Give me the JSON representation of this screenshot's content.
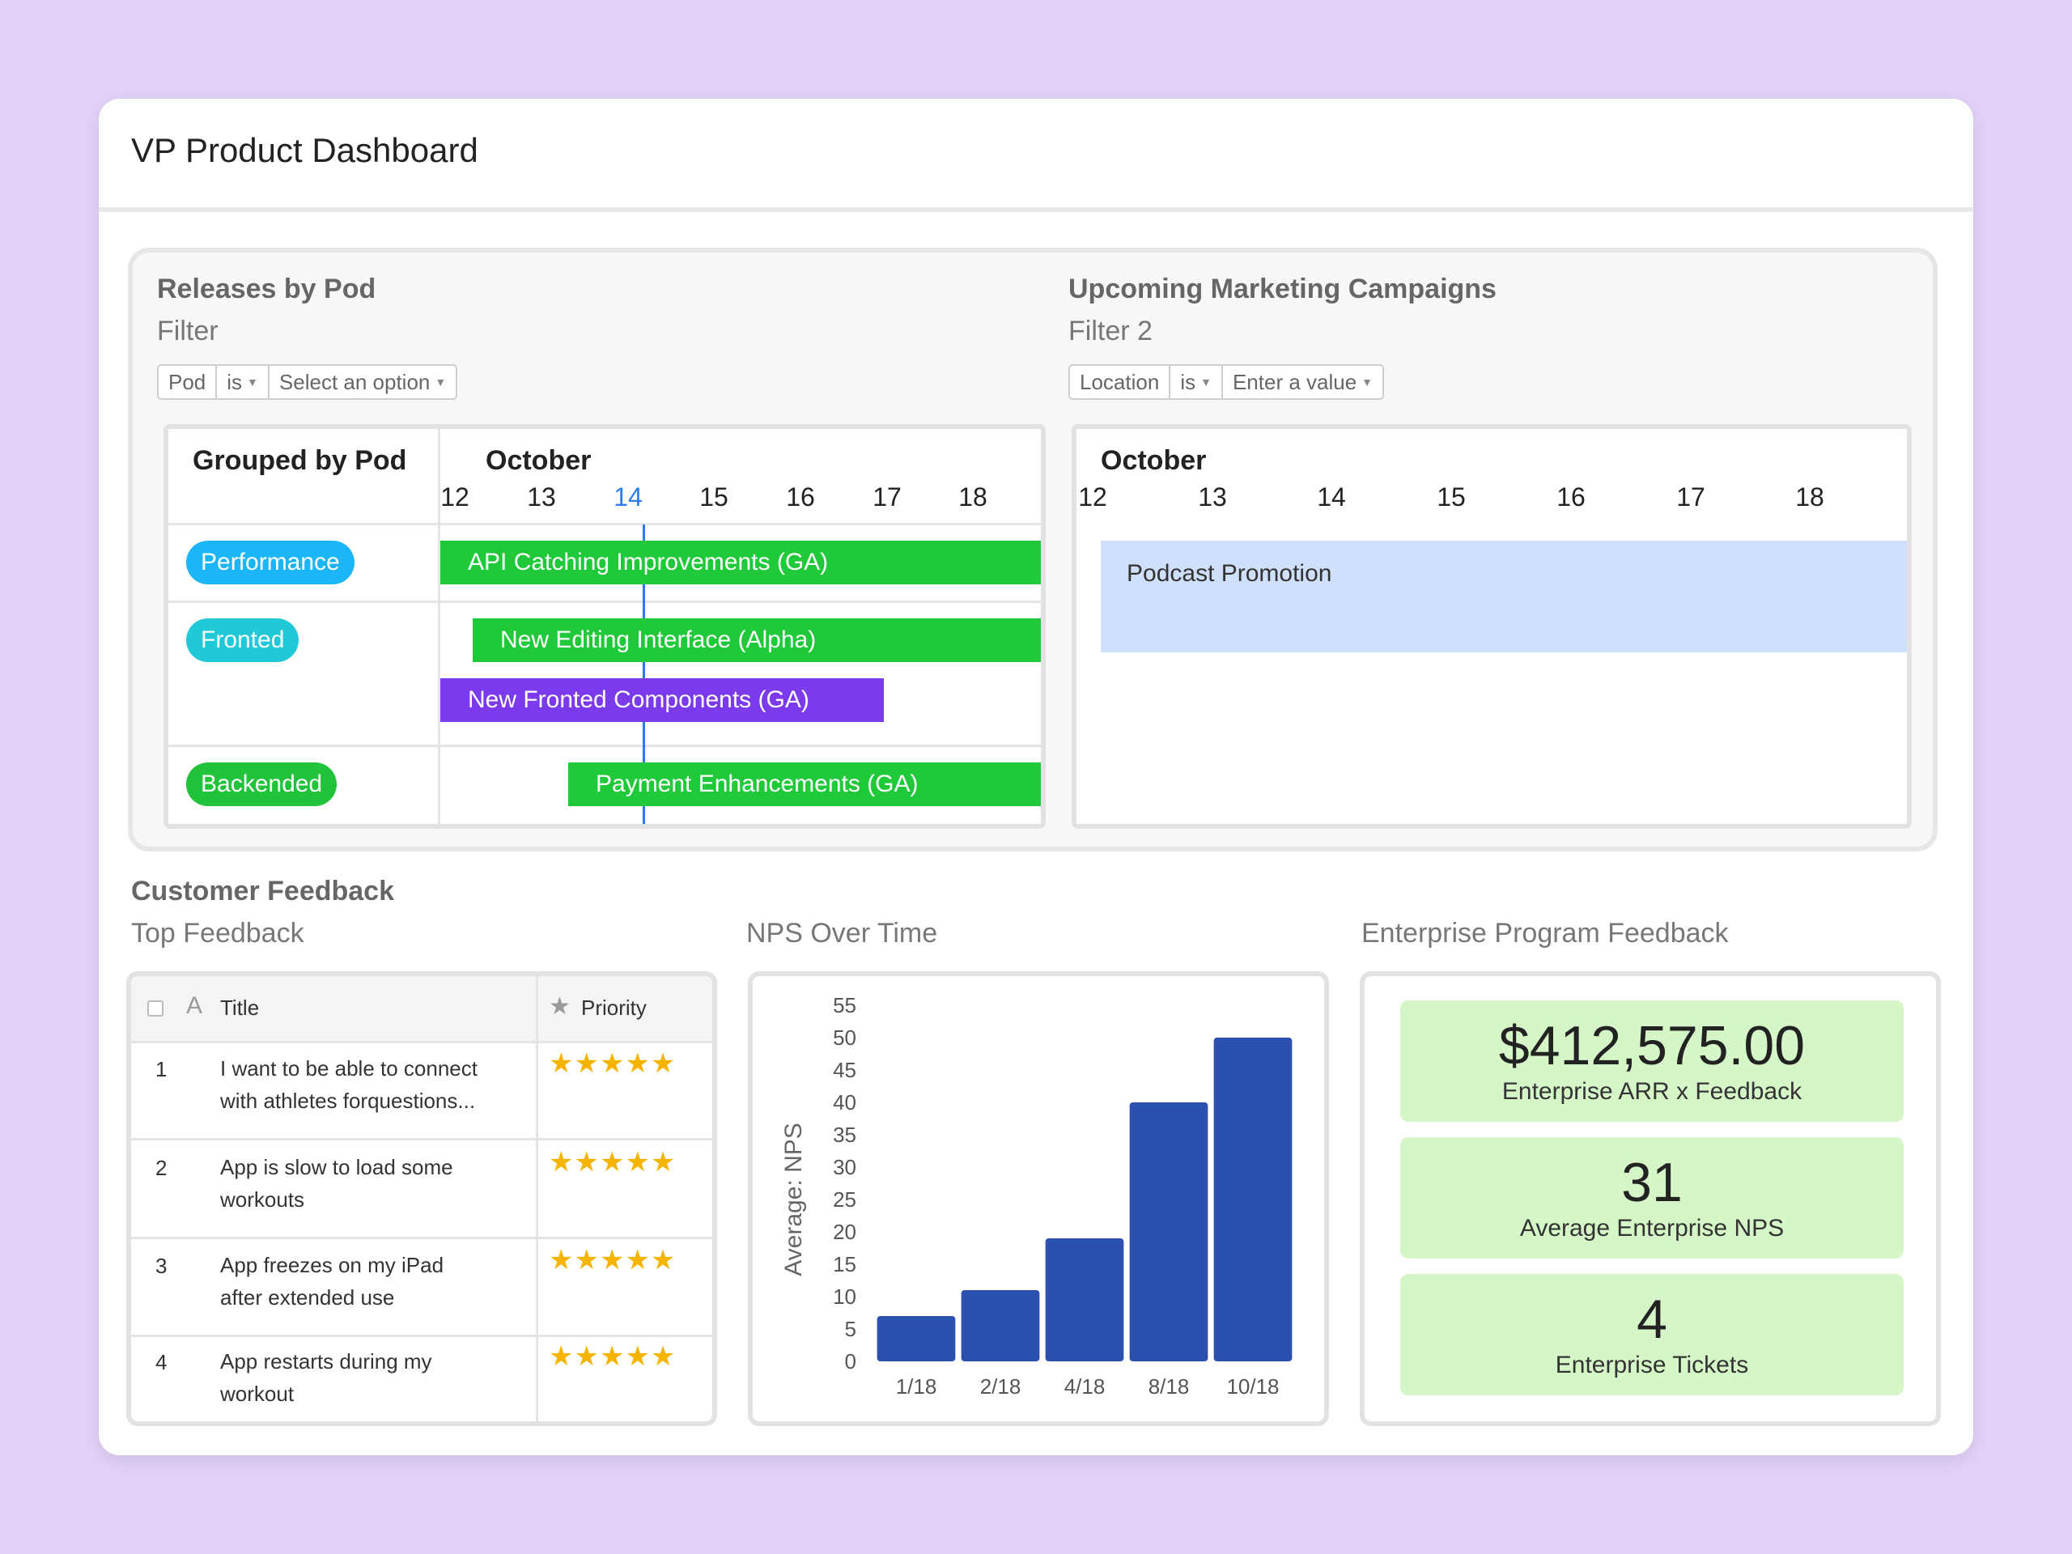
{
  "dashboard": {
    "title": "VP Product Dashboard"
  },
  "releases": {
    "title": "Releases by Pod",
    "filter_label": "Filter",
    "filter": {
      "field": "Pod",
      "operator": "is",
      "value": "Select an option"
    },
    "group_header": "Grouped by Pod",
    "month": "October",
    "dates": [
      "12",
      "13",
      "14",
      "15",
      "16",
      "17",
      "18"
    ],
    "today": "14",
    "pods": [
      {
        "name": "Performance",
        "color": "#1cb6f7"
      },
      {
        "name": "Fronted",
        "color": "#20c9d8"
      },
      {
        "name": "Backended",
        "color": "#20c33a"
      }
    ],
    "bars": [
      {
        "label": "API Catching Improvements (GA)",
        "color": "#20c93a"
      },
      {
        "label": "New Editing Interface (Alpha)",
        "color": "#20c93a"
      },
      {
        "label": "New Fronted Components (GA)",
        "color": "#7c3aed"
      },
      {
        "label": "Payment Enhancements (GA)",
        "color": "#20c93a"
      }
    ]
  },
  "campaigns": {
    "title": "Upcoming Marketing Campaigns",
    "filter_label": "Filter 2",
    "filter": {
      "field": "Location",
      "operator": "is",
      "value": "Enter a value"
    },
    "month": "October",
    "dates": [
      "12",
      "13",
      "14",
      "15",
      "16",
      "17",
      "18"
    ],
    "events": [
      {
        "label": "Podcast Promotion",
        "color": "#cfe0fc"
      }
    ]
  },
  "feedback": {
    "section_title": "Customer Feedback",
    "table": {
      "title": "Top Feedback",
      "headers": {
        "title": "Title",
        "priority": "Priority"
      },
      "rows": [
        {
          "num": "1",
          "line1": "I want to be able to connect",
          "line2": "with athletes forquestions...",
          "stars": "★★★★★"
        },
        {
          "num": "2",
          "line1": "App is slow to load some",
          "line2": "workouts",
          "stars": "★★★★★"
        },
        {
          "num": "3",
          "line1": "App freezes on my iPad",
          "line2": "after extended use",
          "stars": "★★★★★"
        },
        {
          "num": "4",
          "line1": "App restarts during my",
          "line2": "workout",
          "stars": "★★★★★"
        }
      ]
    },
    "nps": {
      "title": "NPS Over Time",
      "ylabel": "Average: NPS"
    },
    "enterprise": {
      "title": "Enterprise Program Feedback",
      "kpis": [
        {
          "value": "$412,575.00",
          "label": "Enterprise ARR x Feedback"
        },
        {
          "value": "31",
          "label": "Average Enterprise NPS"
        },
        {
          "value": "4",
          "label": "Enterprise Tickets"
        }
      ]
    }
  },
  "chart_data": {
    "type": "bar",
    "title": "NPS Over Time",
    "xlabel": "",
    "ylabel": "Average: NPS",
    "categories": [
      "1/18",
      "2/18",
      "4/18",
      "8/18",
      "10/18"
    ],
    "values": [
      7,
      11,
      19,
      40,
      50
    ],
    "ylim": [
      0,
      55
    ],
    "yticks": [
      0,
      5,
      10,
      15,
      20,
      25,
      30,
      35,
      40,
      45,
      50,
      55
    ],
    "bar_color": "#2b50b0",
    "grid": false
  }
}
